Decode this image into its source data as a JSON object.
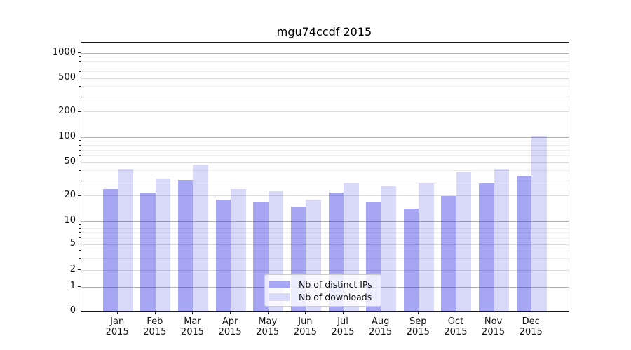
{
  "chart_data": {
    "type": "bar",
    "title": "mgu74ccdf 2015",
    "categories": [
      "Jan",
      "Feb",
      "Mar",
      "Apr",
      "May",
      "Jun",
      "Jul",
      "Aug",
      "Sep",
      "Oct",
      "Nov",
      "Dec"
    ],
    "category_year": "2015",
    "series": [
      {
        "name": "Nb of distinct IPs",
        "values": [
          24,
          22,
          31,
          18,
          17,
          15,
          22,
          17,
          14,
          20,
          28,
          35
        ],
        "fill_color": "rgba(20,20,224,0.38)",
        "swatch_color": "#a6a6f3"
      },
      {
        "name": "Nb of downloads",
        "values": [
          41,
          32,
          47,
          24,
          23,
          18,
          29,
          26,
          28,
          39,
          42,
          104
        ],
        "fill_color": "rgba(20,20,224,0.16)",
        "swatch_color": "#d9d9fa"
      }
    ],
    "yticks": [
      0,
      1,
      2,
      5,
      10,
      20,
      50,
      100,
      200,
      500,
      1000
    ],
    "ylim": [
      0,
      1200
    ],
    "scale": "symlog",
    "xlabel": "",
    "ylabel": "",
    "grid": true,
    "legend_position": "lower center"
  }
}
